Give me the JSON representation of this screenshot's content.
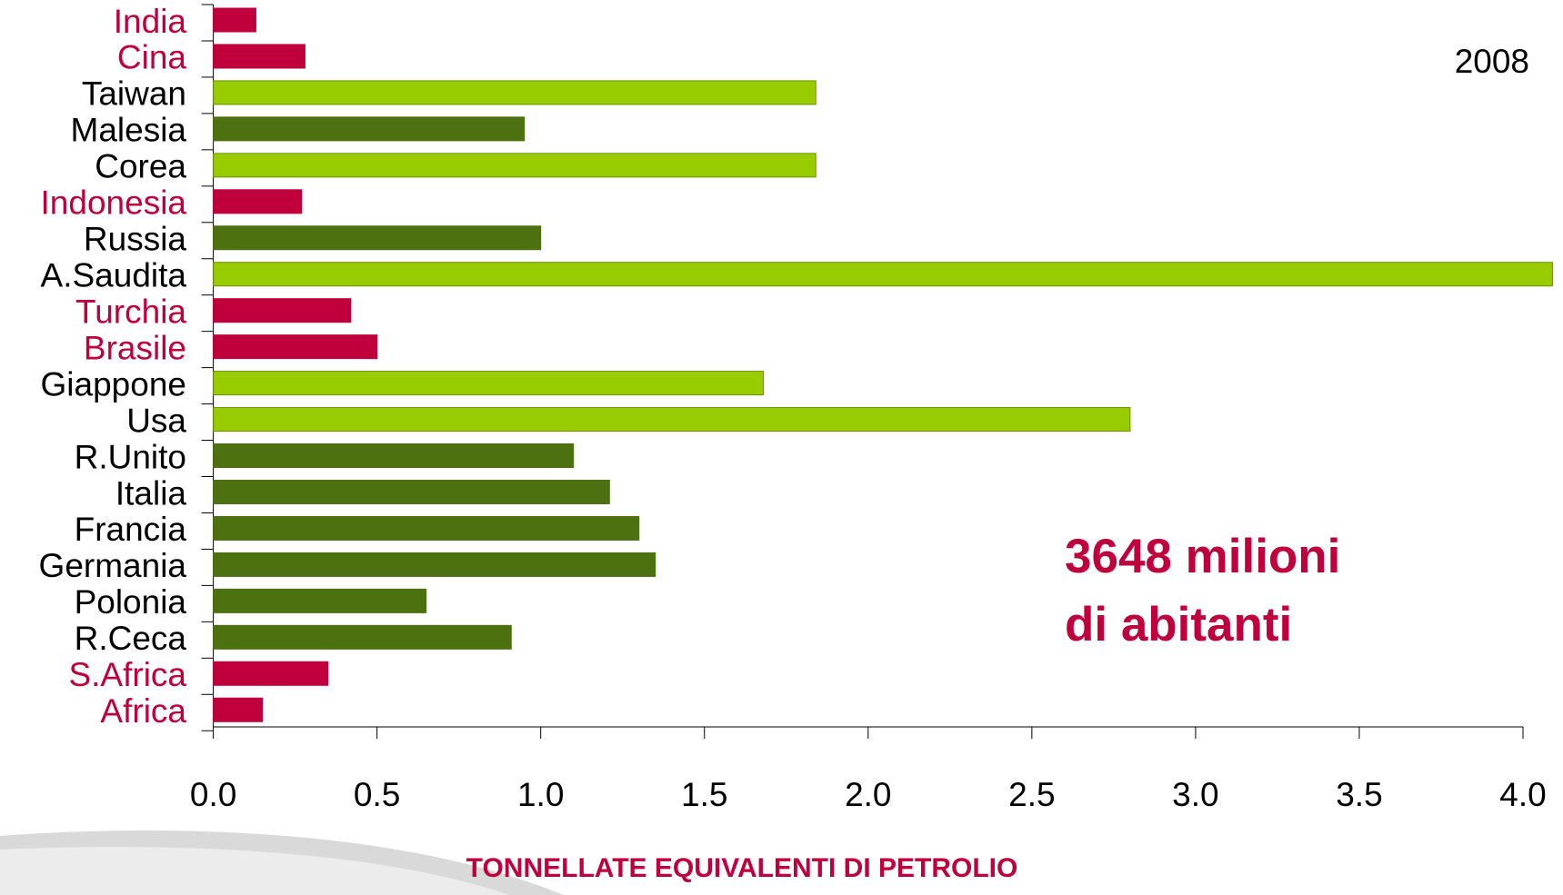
{
  "chart_data": {
    "type": "bar",
    "orientation": "horizontal",
    "subtitle": "2008",
    "annotation": [
      "3648 milioni",
      "di abitanti"
    ],
    "annotation_color": "#c0003c",
    "xlabel": "TONNELLATE EQUIVALENTI DI PETROLIO",
    "xlabel_color": "#c0003c",
    "categories": [
      "India",
      "Cina",
      "Taiwan",
      "Malesia",
      "Corea",
      "Indonesia",
      "Russia",
      "A.Saudita",
      "Turchia",
      "Brasile",
      "Giappone",
      "Usa",
      "R.Unito",
      "Italia",
      "Francia",
      "Germania",
      "Polonia",
      "R.Ceca",
      "S.Africa",
      "Africa"
    ],
    "values": [
      0.13,
      0.28,
      1.84,
      0.95,
      1.84,
      0.27,
      1.0,
      4.09,
      0.42,
      0.5,
      1.68,
      2.8,
      1.1,
      1.21,
      1.3,
      1.35,
      0.65,
      0.91,
      0.35,
      0.15
    ],
    "colors": [
      "#c0003c",
      "#c0003c",
      "#99cc00",
      "#4d7010",
      "#99cc00",
      "#c0003c",
      "#4d7010",
      "#99cc00",
      "#c0003c",
      "#c0003c",
      "#99cc00",
      "#99cc00",
      "#4d7010",
      "#4d7010",
      "#4d7010",
      "#4d7010",
      "#4d7010",
      "#4d7010",
      "#c0003c",
      "#c0003c"
    ],
    "category_colors": [
      "#c0003c",
      "#c0003c",
      "#000000",
      "#000000",
      "#000000",
      "#c0003c",
      "#000000",
      "#000000",
      "#c0003c",
      "#c0003c",
      "#000000",
      "#000000",
      "#000000",
      "#000000",
      "#000000",
      "#000000",
      "#000000",
      "#000000",
      "#c0003c",
      "#c0003c"
    ],
    "xlim": [
      0,
      4
    ],
    "xticks": [
      {
        "value": 0,
        "label": "0.0"
      },
      0.5,
      {
        "value": 1,
        "label": "1.0"
      },
      1.5,
      {
        "value": 2,
        "label": "2.0"
      },
      2.5,
      {
        "value": 3,
        "label": "3.0"
      },
      3.5,
      {
        "value": 4,
        "label": "4.0"
      }
    ],
    "grid": false
  }
}
